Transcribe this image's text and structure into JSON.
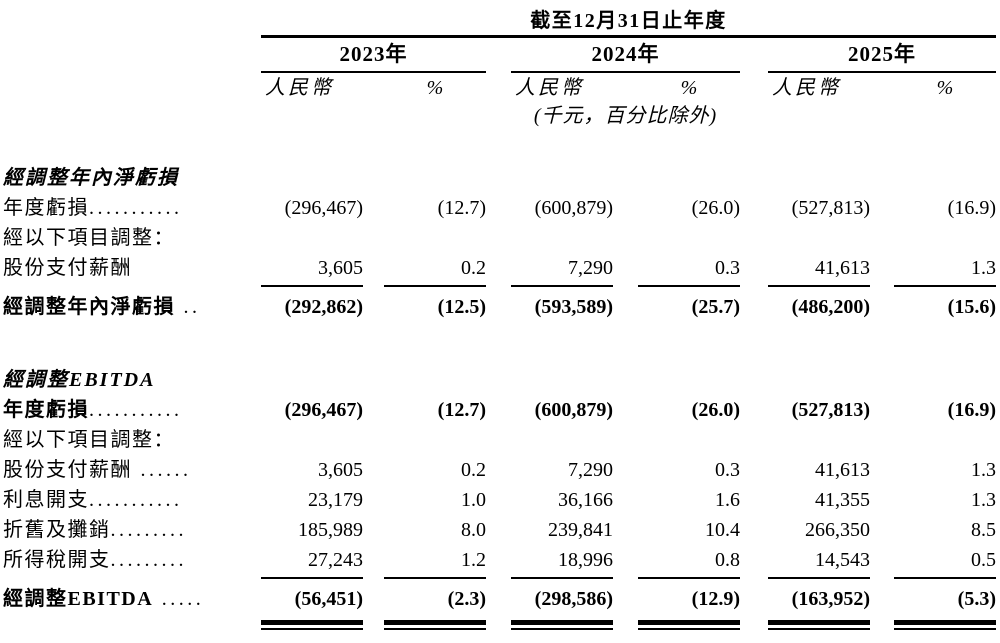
{
  "table": {
    "title": "截至12月31日止年度",
    "years": [
      "2023年",
      "2024年",
      "2025年"
    ],
    "col_headers": {
      "rmb": "人民幣",
      "pct": "%"
    },
    "unit_note": "(千元，百分比除外)",
    "sections": [
      {
        "header": "經調整年內淨虧損",
        "rows": [
          {
            "label": "年度虧損",
            "dots": "...........",
            "bold": false,
            "values": [
              "(296,467)",
              "(12.7)",
              "(600,879)",
              "(26.0)",
              "(527,813)",
              "(16.9)"
            ]
          },
          {
            "label": "經以下項目調整：",
            "dots": "",
            "bold": false,
            "values": [
              "",
              "",
              "",
              "",
              "",
              ""
            ]
          },
          {
            "label": "股份支付薪酬",
            "dots": "",
            "bold": false,
            "values": [
              "3,605",
              "0.2",
              "7,290",
              "0.3",
              "41,613",
              "1.3"
            ],
            "rule_below": true
          }
        ],
        "total": {
          "label": "經調整年內淨虧損",
          "dots": " ..",
          "values": [
            "(292,862)",
            "(12.5)",
            "(593,589)",
            "(25.7)",
            "(486,200)",
            "(15.6)"
          ],
          "double_rule": false
        }
      },
      {
        "header": "經調整EBITDA",
        "rows": [
          {
            "label": "年度虧損",
            "dots": "...........",
            "bold": true,
            "values": [
              "(296,467)",
              "(12.7)",
              "(600,879)",
              "(26.0)",
              "(527,813)",
              "(16.9)"
            ]
          },
          {
            "label": "經以下項目調整：",
            "dots": "",
            "bold": false,
            "values": [
              "",
              "",
              "",
              "",
              "",
              ""
            ]
          },
          {
            "label": "股份支付薪酬",
            "dots": " ......",
            "bold": false,
            "values": [
              "3,605",
              "0.2",
              "7,290",
              "0.3",
              "41,613",
              "1.3"
            ]
          },
          {
            "label": "利息開支",
            "dots": "...........",
            "bold": false,
            "values": [
              "23,179",
              "1.0",
              "36,166",
              "1.6",
              "41,355",
              "1.3"
            ]
          },
          {
            "label": "折舊及攤銷",
            "dots": ".........",
            "bold": false,
            "values": [
              "185,989",
              "8.0",
              "239,841",
              "10.4",
              "266,350",
              "8.5"
            ]
          },
          {
            "label": "所得稅開支",
            "dots": ".........",
            "bold": false,
            "values": [
              "27,243",
              "1.2",
              "18,996",
              "0.8",
              "14,543",
              "0.5"
            ],
            "rule_below": true
          }
        ],
        "total": {
          "label": "經調整EBITDA",
          "dots": " .....",
          "values": [
            "(56,451)",
            "(2.3)",
            "(298,586)",
            "(12.9)",
            "(163,952)",
            "(5.3)"
          ],
          "double_rule": true
        }
      }
    ]
  }
}
